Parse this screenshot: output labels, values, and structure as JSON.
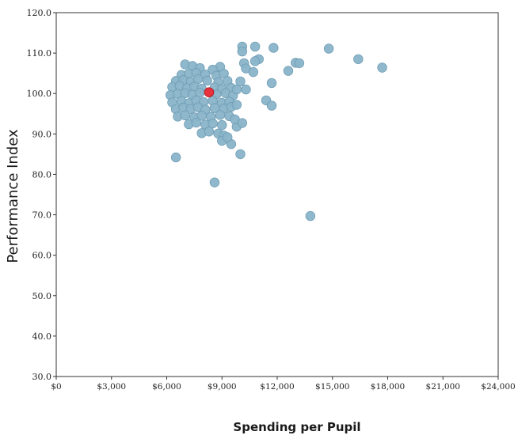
{
  "chart_data": {
    "type": "scatter",
    "title": "",
    "xlabel": "Spending per Pupil",
    "ylabel": "Performance Index",
    "xlim": [
      0,
      24000
    ],
    "ylim": [
      30,
      120
    ],
    "x_ticks": [
      0,
      3000,
      6000,
      9000,
      12000,
      15000,
      18000,
      21000,
      24000
    ],
    "x_tick_labels": [
      "$0",
      "$3,000",
      "$6,000",
      "$9,000",
      "$12,000",
      "$15,000",
      "$18,000",
      "$21,000",
      "$24,000"
    ],
    "y_ticks": [
      30,
      40,
      50,
      60,
      70,
      80,
      90,
      100,
      110,
      120
    ],
    "y_tick_labels": [
      "30.0",
      "40.0",
      "50.0",
      "60.0",
      "70.0",
      "80.0",
      "90.0",
      "100.0",
      "110.0",
      "120.0"
    ],
    "grid": false,
    "legend": "none",
    "colors": {
      "point": "#8ab4c9",
      "point_stroke": "#6e9cb4",
      "highlight": "#e8323c",
      "highlight_stroke": "#b81e28",
      "axis": "#333333"
    },
    "highlight_point": {
      "x": 8300,
      "y": 100.3
    },
    "series": [
      {
        "points": [
          [
            7000,
            107.2
          ],
          [
            7400,
            106.8
          ],
          [
            7800,
            106.3
          ],
          [
            8900,
            106.6
          ],
          [
            8500,
            105.9
          ],
          [
            6800,
            104.6
          ],
          [
            7200,
            104.9
          ],
          [
            7600,
            105.1
          ],
          [
            8100,
            104.7
          ],
          [
            8700,
            104.4
          ],
          [
            9100,
            104.9
          ],
          [
            6500,
            103.1
          ],
          [
            6900,
            103.3
          ],
          [
            7300,
            102.9
          ],
          [
            7700,
            103.6
          ],
          [
            8200,
            103.2
          ],
          [
            8800,
            102.8
          ],
          [
            9300,
            103.1
          ],
          [
            6300,
            101.6
          ],
          [
            6700,
            101.9
          ],
          [
            7100,
            101.3
          ],
          [
            7500,
            101.7
          ],
          [
            7900,
            101.2
          ],
          [
            8600,
            101.5
          ],
          [
            9000,
            101.1
          ],
          [
            9500,
            101.4
          ],
          [
            6200,
            99.6
          ],
          [
            6600,
            99.9
          ],
          [
            7000,
            100.1
          ],
          [
            7400,
            99.7
          ],
          [
            7800,
            100.2
          ],
          [
            8700,
            99.8
          ],
          [
            9200,
            100.1
          ],
          [
            9600,
            99.5
          ],
          [
            6300,
            97.8
          ],
          [
            6800,
            98.1
          ],
          [
            7200,
            97.6
          ],
          [
            7600,
            98.3
          ],
          [
            8000,
            97.9
          ],
          [
            8500,
            98.2
          ],
          [
            9000,
            97.7
          ],
          [
            9400,
            98.0
          ],
          [
            6500,
            96.1
          ],
          [
            6900,
            96.5
          ],
          [
            7300,
            96.2
          ],
          [
            7700,
            96.6
          ],
          [
            8100,
            96.0
          ],
          [
            8600,
            96.4
          ],
          [
            9100,
            96.3
          ],
          [
            9500,
            96.7
          ],
          [
            6600,
            94.3
          ],
          [
            7000,
            94.6
          ],
          [
            7500,
            94.1
          ],
          [
            7900,
            94.5
          ],
          [
            8400,
            94.2
          ],
          [
            8900,
            94.7
          ],
          [
            9400,
            94.4
          ],
          [
            7200,
            92.4
          ],
          [
            7600,
            92.8
          ],
          [
            8100,
            92.3
          ],
          [
            8500,
            92.6
          ],
          [
            9000,
            92.2
          ],
          [
            7900,
            90.2
          ],
          [
            8300,
            90.6
          ],
          [
            8800,
            90.1
          ],
          [
            9100,
            89.6
          ],
          [
            9000,
            88.3
          ],
          [
            9500,
            87.5
          ],
          [
            9300,
            89.2
          ],
          [
            9800,
            91.8
          ],
          [
            9700,
            93.6
          ],
          [
            9800,
            97.2
          ],
          [
            9800,
            101.0
          ],
          [
            10300,
            101.0
          ],
          [
            10000,
            103.0
          ],
          [
            10100,
            111.6
          ],
          [
            10100,
            110.4
          ],
          [
            10800,
            111.6
          ],
          [
            11800,
            111.3
          ],
          [
            11000,
            108.5
          ],
          [
            10800,
            108.0
          ],
          [
            10200,
            107.5
          ],
          [
            10300,
            106.2
          ],
          [
            10700,
            105.3
          ],
          [
            11700,
            102.6
          ],
          [
            11400,
            98.3
          ],
          [
            11700,
            97.0
          ],
          [
            12600,
            105.6
          ],
          [
            13000,
            107.6
          ],
          [
            13200,
            107.5
          ],
          [
            14800,
            111.1
          ],
          [
            16400,
            108.5
          ],
          [
            17700,
            106.4
          ],
          [
            10100,
            92.7
          ],
          [
            10000,
            85.0
          ],
          [
            6500,
            84.2
          ],
          [
            8600,
            78.0
          ],
          [
            13800,
            69.7
          ]
        ]
      }
    ]
  }
}
